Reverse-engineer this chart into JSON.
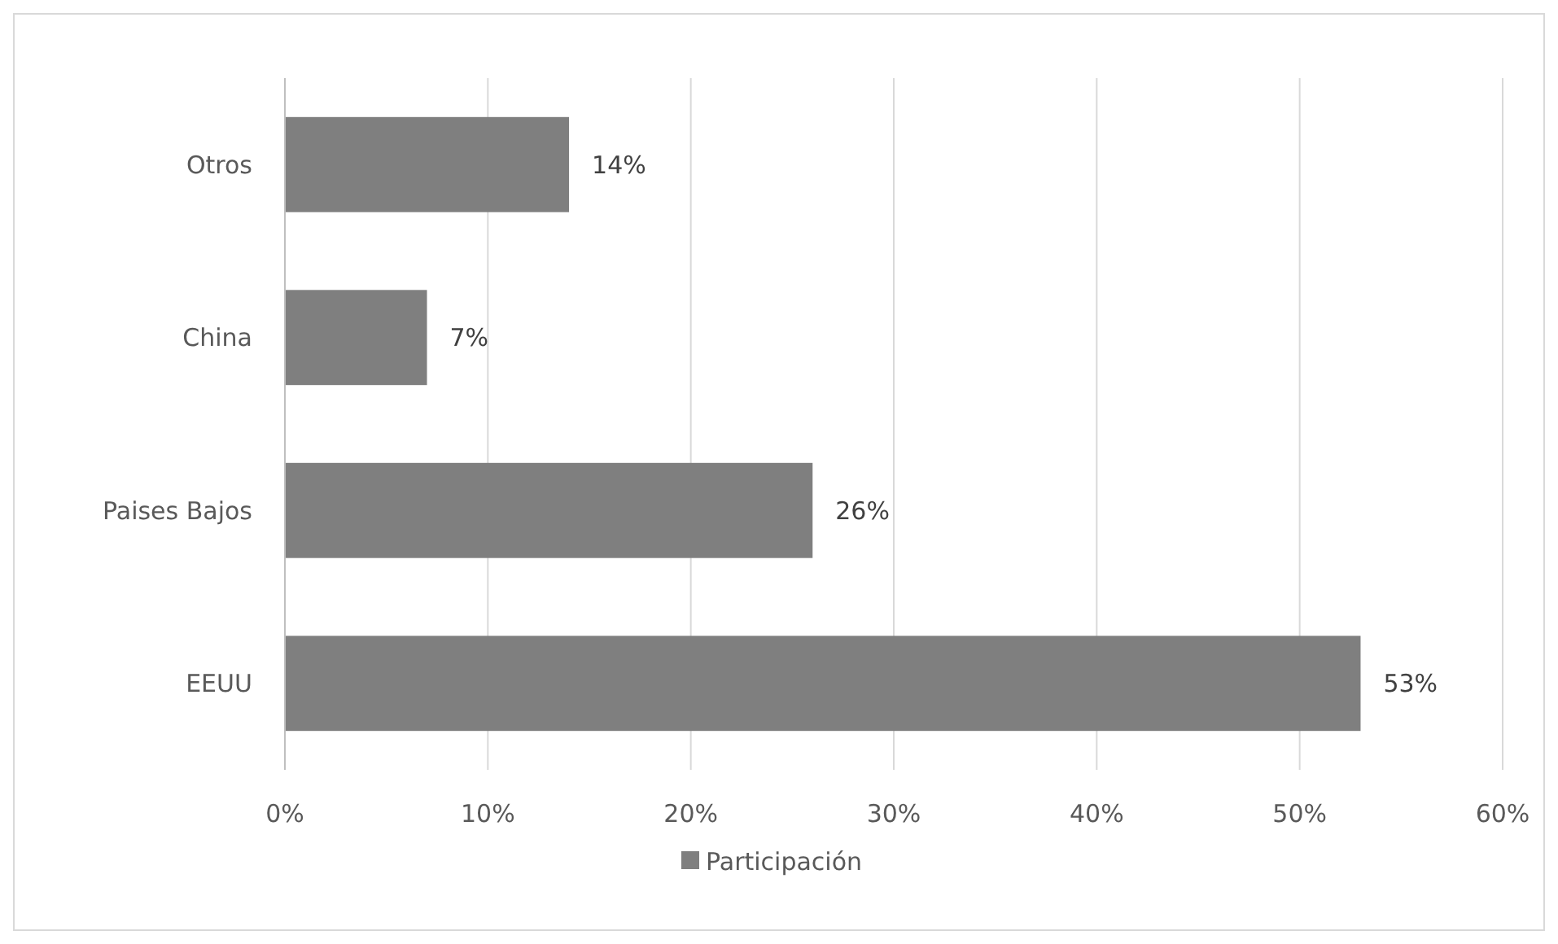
{
  "chart_data": {
    "type": "bar",
    "orientation": "horizontal",
    "categories": [
      "Otros",
      "China",
      "Paises Bajos",
      "EEUU"
    ],
    "series": [
      {
        "name": "Participación",
        "color": "#7f7f7f",
        "values": [
          14,
          7,
          26,
          53
        ]
      }
    ],
    "value_labels": [
      "14%",
      "7%",
      "26%",
      "53%"
    ],
    "xlim": [
      0,
      60
    ],
    "xticks": [
      {
        "value": 0,
        "label": "0%"
      },
      {
        "value": 10,
        "label": "10%"
      },
      {
        "value": 20,
        "label": "20%"
      },
      {
        "value": 30,
        "label": "30%"
      },
      {
        "value": 40,
        "label": "40%"
      },
      {
        "value": 50,
        "label": "50%"
      },
      {
        "value": 60,
        "label": "60%"
      }
    ],
    "grid": "x",
    "legend": "bottom"
  }
}
